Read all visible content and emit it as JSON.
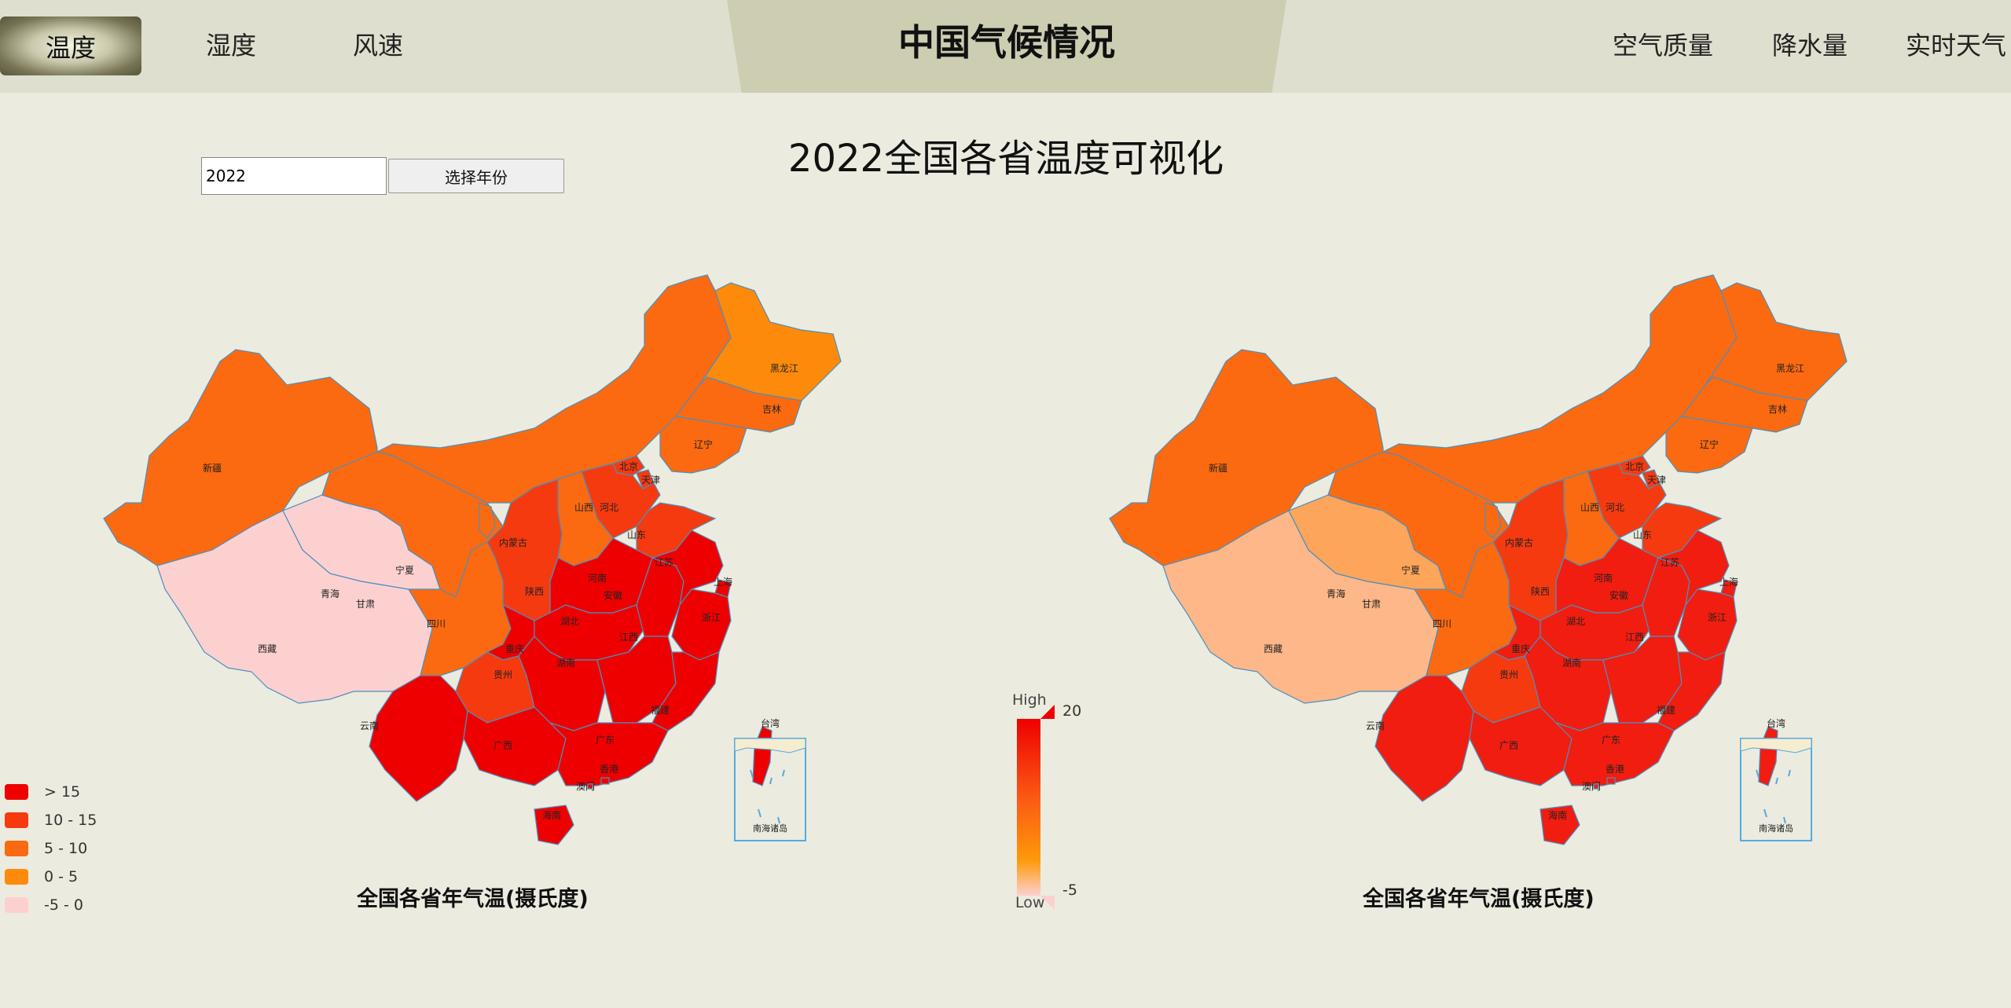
{
  "nav": {
    "left": [
      "温度",
      "湿度",
      "风速"
    ],
    "title": "中国气候情况",
    "right": [
      "空气质量",
      "降水量",
      "实时天气"
    ]
  },
  "controls": {
    "year_value": "2022",
    "select_button": "选择年份"
  },
  "page_title": "2022全国各省温度可视化",
  "province_labels": [
    "新疆",
    "西藏",
    "青海",
    "甘肃",
    "宁夏",
    "内蒙古",
    "黑龙江",
    "吉林",
    "辽宁",
    "北京",
    "天津",
    "河北",
    "山西",
    "山东",
    "陕西",
    "河南",
    "四川",
    "重庆",
    "湖北",
    "安徽",
    "江苏",
    "上海",
    "浙江",
    "湖南",
    "江西",
    "贵州",
    "云南",
    "广西",
    "广东",
    "福建",
    "台湾",
    "香港",
    "澳门",
    "海南"
  ],
  "south_sea_label": "南海诸岛",
  "left_map": {
    "title": "全国各省年气温(摄氏度)",
    "legend": [
      {
        "label": "> 15",
        "color": "#ee0000"
      },
      {
        "label": "10 - 15",
        "color": "#f53a10"
      },
      {
        "label": "5 - 10",
        "color": "#fb6a10"
      },
      {
        "label": "0 - 5",
        "color": "#fd8a0a"
      },
      {
        "label": "-5 - 0",
        "color": "#fdd0d0"
      }
    ]
  },
  "right_map": {
    "title": "全国各省年气温(摄氏度)",
    "visual_map": {
      "max_label": "20",
      "min_label": "-5",
      "high_text": "High",
      "low_text": "Low"
    }
  },
  "colors": {
    "accent_red": "#ee0000",
    "background": "#ebebdf",
    "header": "#dfdfcf",
    "center_tab": "#cdcdb2",
    "border": "#4a90c0"
  }
}
